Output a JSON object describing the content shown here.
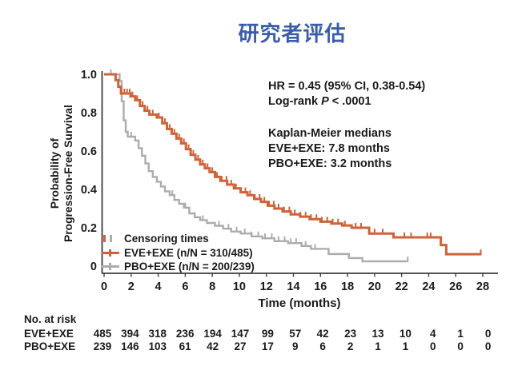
{
  "title": "研究者评估",
  "colors": {
    "orange": "#CE6238",
    "gray": "#ACACAC",
    "blue": "#3A5CA9",
    "text": "#1A1A1A",
    "axis": "#3C3C3C"
  },
  "stats": {
    "hr_line": "HR = 0.45 (95% CI, 0.38-0.54)",
    "logrank_prefix": "Log-rank ",
    "logrank_p": "P",
    "logrank_suffix": " < .0001",
    "km_header": "Kaplan-Meier medians",
    "km_eve": "EVE+EXE: 7.8 months",
    "km_pbo": "PBO+EXE: 3.2 months"
  },
  "legend": {
    "censoring_label": "Censoring times",
    "eve_label": "EVE+EXE (n/N = 310/485)",
    "pbo_label": "PBO+EXE (n/N = 200/239)"
  },
  "risk_table": {
    "header": "No. at risk",
    "rows": [
      {
        "label": "EVE+EXE",
        "values": [
          "485",
          "394",
          "318",
          "236",
          "194",
          "147",
          "99",
          "57",
          "42",
          "23",
          "13",
          "10",
          "4",
          "1",
          "0"
        ]
      },
      {
        "label": "PBO+EXE",
        "values": [
          "239",
          "146",
          "103",
          "61",
          "42",
          "27",
          "17",
          "9",
          "6",
          "2",
          "1",
          "1",
          "0",
          "0",
          "0"
        ]
      }
    ]
  },
  "chart_data": {
    "type": "line",
    "subtype": "kaplan-meier-step",
    "title": "研究者评估",
    "xlabel": "Time (months)",
    "ylabel": "Probability of Progression-Free Survival",
    "ylabel_lines": [
      "Probability of",
      "Progression-Free Survival"
    ],
    "xlim": [
      0,
      28
    ],
    "ylim": [
      0,
      1.0
    ],
    "grid": false,
    "legend_position": "lower-left-inside",
    "xticks": [
      0,
      2,
      4,
      6,
      8,
      10,
      12,
      14,
      16,
      18,
      20,
      22,
      24,
      26,
      28
    ],
    "yticks": {
      "values": [
        1.0,
        0.8,
        0.6,
        0.4,
        0.2,
        0
      ],
      "labels": [
        "1.0",
        "0.8",
        "0.6",
        "0.4",
        "0.2",
        "0"
      ]
    },
    "medians": {
      "EVE+EXE": 7.8,
      "PBO+EXE": 3.2
    },
    "hazard_ratio": {
      "HR": 0.45,
      "ci95": [
        0.38,
        0.54
      ],
      "logrank_p": "< .0001"
    },
    "series": [
      {
        "name": "EVE+EXE",
        "events_n_N": "310/485",
        "color": "#CE6238",
        "points": [
          [
            0,
            1.0
          ],
          [
            0.85,
            0.97
          ],
          [
            1.05,
            0.935
          ],
          [
            1.25,
            0.9
          ],
          [
            1.95,
            0.885
          ],
          [
            2.3,
            0.865
          ],
          [
            2.65,
            0.835
          ],
          [
            3.0,
            0.81
          ],
          [
            3.35,
            0.79
          ],
          [
            3.9,
            0.775
          ],
          [
            4.3,
            0.745
          ],
          [
            4.65,
            0.715
          ],
          [
            5.0,
            0.69
          ],
          [
            5.35,
            0.665
          ],
          [
            5.7,
            0.64
          ],
          [
            6.05,
            0.61
          ],
          [
            6.4,
            0.58
          ],
          [
            6.75,
            0.555
          ],
          [
            7.1,
            0.53
          ],
          [
            7.45,
            0.51
          ],
          [
            7.8,
            0.49
          ],
          [
            8.2,
            0.465
          ],
          [
            8.6,
            0.445
          ],
          [
            9.1,
            0.425
          ],
          [
            9.6,
            0.405
          ],
          [
            10.1,
            0.385
          ],
          [
            10.6,
            0.37
          ],
          [
            11.1,
            0.35
          ],
          [
            11.6,
            0.335
          ],
          [
            12.1,
            0.315
          ],
          [
            12.6,
            0.3
          ],
          [
            13.2,
            0.285
          ],
          [
            13.8,
            0.27
          ],
          [
            14.5,
            0.258
          ],
          [
            15.2,
            0.245
          ],
          [
            16.0,
            0.232
          ],
          [
            16.8,
            0.222
          ],
          [
            17.6,
            0.212
          ],
          [
            18.3,
            0.2
          ],
          [
            19.6,
            0.17
          ],
          [
            21.4,
            0.15
          ],
          [
            24.9,
            0.11
          ],
          [
            25.3,
            0.062
          ],
          [
            27.9,
            0.062
          ]
        ],
        "censor_times": [
          1.5,
          1.7,
          1.9,
          2.1,
          2.45,
          2.85,
          3.2,
          3.6,
          4.05,
          4.5,
          4.85,
          5.2,
          5.55,
          5.9,
          6.25,
          6.6,
          6.95,
          7.3,
          7.65,
          8.0,
          8.35,
          8.7,
          9.05,
          9.4,
          9.75,
          10.1,
          10.45,
          10.8,
          11.15,
          11.5,
          11.85,
          12.2,
          12.55,
          12.9,
          13.3,
          13.7,
          14.1,
          14.5,
          14.9,
          15.3,
          15.7,
          16.1,
          16.5,
          16.9,
          17.3,
          17.8,
          18.6,
          19.0,
          20.0,
          20.6,
          22.2,
          22.7,
          23.9,
          24.15,
          27.85
        ]
      },
      {
        "name": "PBO+EXE",
        "events_n_N": "200/239",
        "color": "#ACACAC",
        "points": [
          [
            0,
            1.0
          ],
          [
            1.15,
            0.965
          ],
          [
            1.3,
            0.86
          ],
          [
            1.45,
            0.76
          ],
          [
            1.6,
            0.7
          ],
          [
            1.75,
            0.675
          ],
          [
            2.3,
            0.655
          ],
          [
            2.55,
            0.615
          ],
          [
            2.8,
            0.575
          ],
          [
            3.05,
            0.535
          ],
          [
            3.3,
            0.495
          ],
          [
            3.6,
            0.465
          ],
          [
            3.9,
            0.44
          ],
          [
            4.2,
            0.415
          ],
          [
            4.5,
            0.39
          ],
          [
            4.85,
            0.37
          ],
          [
            5.2,
            0.345
          ],
          [
            5.55,
            0.325
          ],
          [
            5.9,
            0.305
          ],
          [
            6.3,
            0.275
          ],
          [
            6.7,
            0.255
          ],
          [
            7.1,
            0.24
          ],
          [
            7.6,
            0.225
          ],
          [
            8.2,
            0.21
          ],
          [
            8.8,
            0.195
          ],
          [
            9.4,
            0.18
          ],
          [
            10.1,
            0.17
          ],
          [
            10.9,
            0.155
          ],
          [
            11.7,
            0.145
          ],
          [
            12.6,
            0.13
          ],
          [
            13.6,
            0.12
          ],
          [
            14.6,
            0.105
          ],
          [
            15.3,
            0.09
          ],
          [
            16.6,
            0.063
          ],
          [
            18.1,
            0.042
          ],
          [
            19.1,
            0.025
          ],
          [
            22.5,
            0.025
          ]
        ],
        "censor_times": [
          0.5,
          2.0,
          5.05,
          6.0,
          7.3,
          8.5,
          9.2,
          9.8,
          10.4,
          10.9,
          11.4,
          11.9,
          12.4,
          12.9,
          13.35,
          13.8,
          14.2,
          14.9,
          15.6,
          22.45
        ]
      }
    ]
  }
}
